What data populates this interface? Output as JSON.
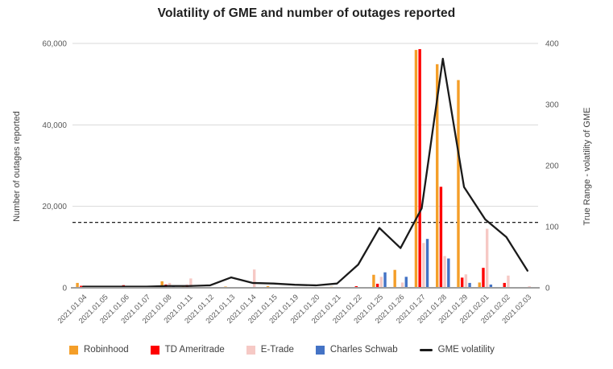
{
  "chart_data": {
    "type": "bar+line",
    "title": "Volatility of GME and number of outages reported",
    "categories": [
      "2021.01.04",
      "2021.01.05",
      "2021.01.06",
      "2021.01.07",
      "2021.01.08",
      "2021.01.11",
      "2021.01.12",
      "2021.01.13",
      "2021.01.14",
      "2021.01.15",
      "2021.01.19",
      "2021.01.20",
      "2021.01.21",
      "2021.01.22",
      "2021.01.25",
      "2021.01.26",
      "2021.01.27",
      "2021.01.28",
      "2021.01.29",
      "2021.02.01",
      "2021.02.02",
      "2021.02.03"
    ],
    "series": [
      {
        "name": "Robinhood",
        "color": "#F49E28",
        "axis": "left",
        "values": [
          1200,
          0,
          0,
          300,
          1600,
          400,
          0,
          300,
          0,
          400,
          0,
          0,
          250,
          0,
          3200,
          4400,
          58400,
          54900,
          51000,
          1300,
          0,
          0
        ]
      },
      {
        "name": "TD Ameritrade",
        "color": "#FE0000",
        "axis": "left",
        "values": [
          500,
          0,
          650,
          0,
          800,
          700,
          0,
          0,
          0,
          0,
          0,
          0,
          0,
          400,
          1000,
          0,
          58600,
          24800,
          2500,
          4900,
          1200,
          0
        ]
      },
      {
        "name": "E-Trade",
        "color": "#F6C9C5",
        "axis": "left",
        "values": [
          0,
          0,
          0,
          200,
          1200,
          2300,
          0,
          0,
          4500,
          200,
          0,
          0,
          0,
          0,
          2700,
          1300,
          11000,
          7800,
          3300,
          14500,
          3000,
          400
        ]
      },
      {
        "name": "Charles Schwab",
        "color": "#4473C5",
        "axis": "left",
        "values": [
          0,
          0,
          0,
          0,
          500,
          0,
          0,
          0,
          0,
          0,
          0,
          0,
          0,
          0,
          3800,
          2700,
          12000,
          7200,
          1200,
          800,
          0,
          0
        ]
      }
    ],
    "line_series": {
      "name": "GME volatility",
      "color": "#1A1A1A",
      "axis": "right",
      "values": [
        2,
        2,
        2,
        2,
        3,
        3,
        4,
        17,
        8,
        7,
        5,
        4,
        7,
        38,
        98,
        65,
        130,
        375,
        165,
        112,
        83,
        28
      ]
    },
    "threshold_line": {
      "axis": "right",
      "value": 107,
      "style": "dashed",
      "color": "#000000"
    },
    "left_axis": {
      "label": "Number of outages reported",
      "min": 0,
      "max": 60000,
      "ticks": [
        0,
        20000,
        40000,
        60000
      ],
      "tick_labels": [
        "0",
        "20,000",
        "40,000",
        "60,000"
      ]
    },
    "right_axis": {
      "label": "True Range - volatility of GME",
      "min": 0,
      "max": 400,
      "ticks": [
        0,
        100,
        200,
        300,
        400
      ],
      "tick_labels": [
        "0",
        "100",
        "200",
        "300",
        "400"
      ]
    },
    "grid": "horizontal",
    "gridline_color": "#D9D9D9",
    "axis_line_color": "#9E9E9E",
    "tick_text_color": "#595959",
    "legend_position": "bottom-left"
  }
}
